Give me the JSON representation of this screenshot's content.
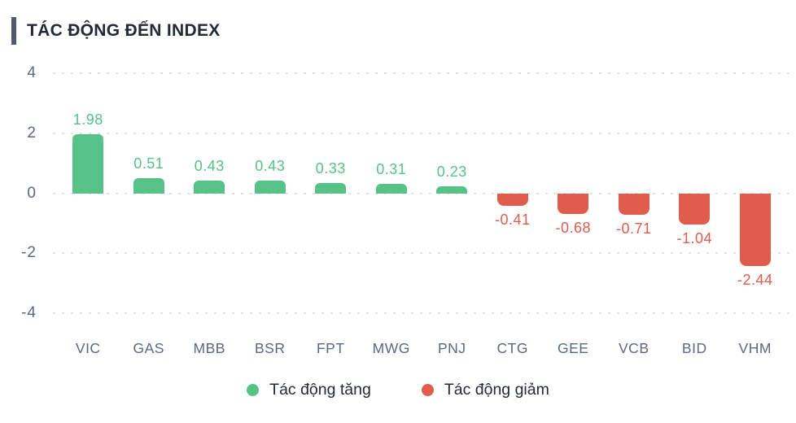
{
  "title": "TÁC ĐỘNG ĐẾN INDEX",
  "colors": {
    "positive": "#57C287",
    "negative": "#E05C4D",
    "accent_bar": "#4F5A71",
    "title_text": "#242936",
    "axis_label": "#5C6780",
    "gridline": "#E2E2E2",
    "background": "#FFFFFF"
  },
  "legend": {
    "items": [
      {
        "label": "Tác động tăng",
        "color": "#57C287",
        "series": "positive"
      },
      {
        "label": "Tác động giảm",
        "color": "#E05C4D",
        "series": "negative"
      }
    ]
  },
  "chart_data": {
    "type": "bar",
    "title": "TÁC ĐỘNG ĐẾN INDEX",
    "categories": [
      "VIC",
      "GAS",
      "MBB",
      "BSR",
      "FPT",
      "MWG",
      "PNJ",
      "CTG",
      "GEE",
      "VCB",
      "BID",
      "VHM"
    ],
    "values": [
      1.98,
      0.51,
      0.43,
      0.43,
      0.33,
      0.31,
      0.23,
      -0.41,
      -0.68,
      -0.71,
      -1.04,
      -2.44
    ],
    "value_labels": [
      "1.98",
      "0.51",
      "0.43",
      "0.43",
      "0.33",
      "0.31",
      "0.23",
      "-0.41",
      "-0.68",
      "-0.71",
      "-1.04",
      "-2.44"
    ],
    "xlabel": "",
    "ylabel": "",
    "ylim": [
      -4,
      4
    ],
    "yticks": [
      4,
      2,
      0,
      -2,
      -4
    ],
    "ytick_labels": [
      "4",
      "2",
      "0",
      "-2",
      "-4"
    ],
    "grid": "dotted-horizontal",
    "legend_position": "bottom"
  }
}
